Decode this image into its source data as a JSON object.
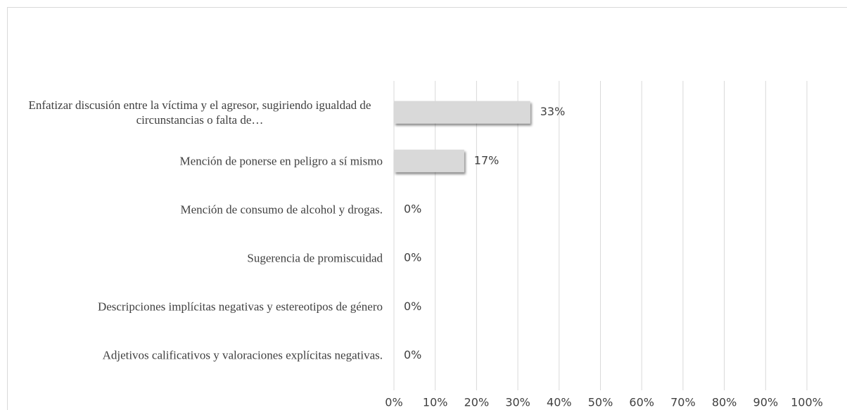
{
  "chart_data": {
    "type": "barh",
    "categories": [
      "Enfatizar discusión entre la víctima y el agresor, sugiriendo igualdad de circunstancias o falta de…",
      "Mención de ponerse en peligro a sí mismo",
      "Mención de consumo de alcohol y drogas.",
      "Sugerencia de promiscuidad",
      "Descripciones implícitas negativas y estereotipos de género",
      "Adjetivos calificativos y valoraciones explícitas negativas."
    ],
    "values": [
      33,
      17,
      0,
      0,
      0,
      0
    ],
    "value_labels": [
      "33%",
      "17%",
      "0%",
      "0%",
      "0%",
      "0%"
    ],
    "color": "#d9d9d9",
    "xlim": [
      0,
      100
    ],
    "xticks": [
      {
        "value": 0,
        "label": "0%"
      },
      {
        "value": 10,
        "label": "10%"
      },
      {
        "value": 20,
        "label": "20%"
      },
      {
        "value": 30,
        "label": "30%"
      },
      {
        "value": 40,
        "label": "40%"
      },
      {
        "value": 50,
        "label": "50%"
      },
      {
        "value": 60,
        "label": "60%"
      },
      {
        "value": 70,
        "label": "70%"
      },
      {
        "value": 80,
        "label": "80%"
      },
      {
        "value": 90,
        "label": "90%"
      },
      {
        "value": 100,
        "label": "100%"
      }
    ],
    "grid": true
  }
}
